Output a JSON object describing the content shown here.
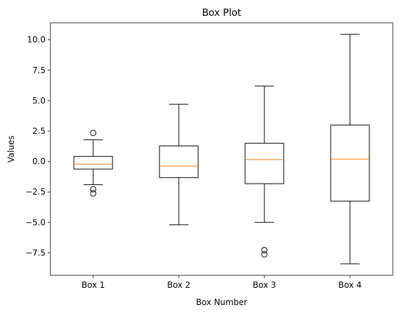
{
  "chart_data": {
    "type": "box",
    "title": "Box Plot",
    "xlabel": "Box Number",
    "ylabel": "Values",
    "ylim": [
      -9.35,
      11.4
    ],
    "yticks": [
      -7.5,
      -5.0,
      -2.5,
      0.0,
      2.5,
      5.0,
      7.5,
      10.0
    ],
    "ytick_labels": [
      "−7.5",
      "−5.0",
      "−2.5",
      "0.0",
      "2.5",
      "5.0",
      "7.5",
      "10.0"
    ],
    "categories": [
      "Box 1",
      "Box 2",
      "Box 3",
      "Box 4"
    ],
    "boxes": [
      {
        "name": "Box 1",
        "whisker_low": -1.9,
        "q1": -0.62,
        "median": -0.22,
        "q3": 0.42,
        "whisker_high": 1.78,
        "outliers": [
          2.35,
          -2.28,
          -2.62
        ]
      },
      {
        "name": "Box 2",
        "whisker_low": -5.2,
        "q1": -1.32,
        "median": -0.38,
        "q3": 1.28,
        "whisker_high": 4.7,
        "outliers": []
      },
      {
        "name": "Box 3",
        "whisker_low": -5.0,
        "q1": -1.82,
        "median": 0.15,
        "q3": 1.5,
        "whisker_high": 6.2,
        "outliers": [
          -7.28,
          -7.62
        ]
      },
      {
        "name": "Box 4",
        "whisker_low": -8.4,
        "q1": -3.25,
        "median": 0.2,
        "q3": 3.0,
        "whisker_high": 10.45,
        "outliers": []
      }
    ],
    "colors": {
      "box": "#000000",
      "median": "#ff7f0e",
      "outlier": "#000000"
    },
    "grid": false
  }
}
